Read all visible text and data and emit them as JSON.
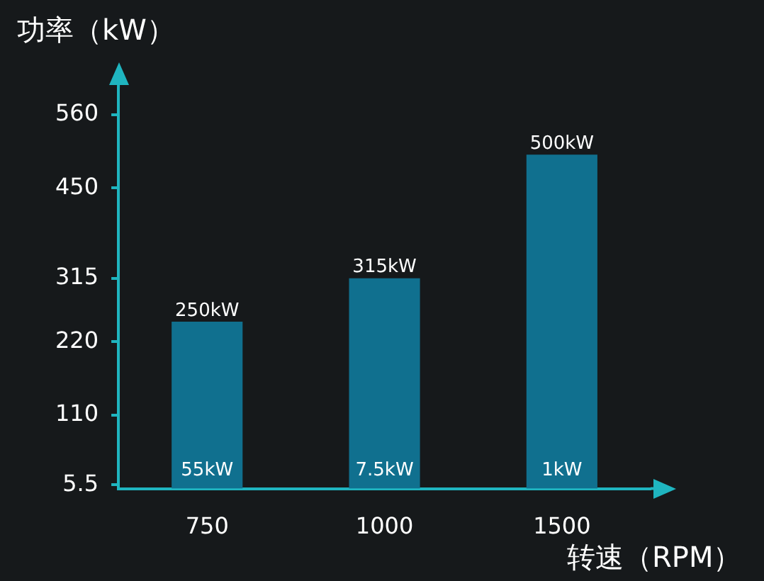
{
  "chart_data": {
    "type": "bar",
    "xlabel": "转速（RPM）",
    "ylabel": "功率（kW）",
    "categories": [
      "750",
      "1000",
      "1500"
    ],
    "values": [
      250,
      315,
      500
    ],
    "value_labels": [
      "250kW",
      "315kW",
      "500kW"
    ],
    "color": "#10708f",
    "ylim": [
      0,
      600
    ],
    "yticks": [
      5.5,
      110,
      220,
      315,
      450,
      560
    ],
    "annotations": [
      "55kW",
      "7.5kW",
      "1kW"
    ],
    "grid": false,
    "legend": false
  }
}
